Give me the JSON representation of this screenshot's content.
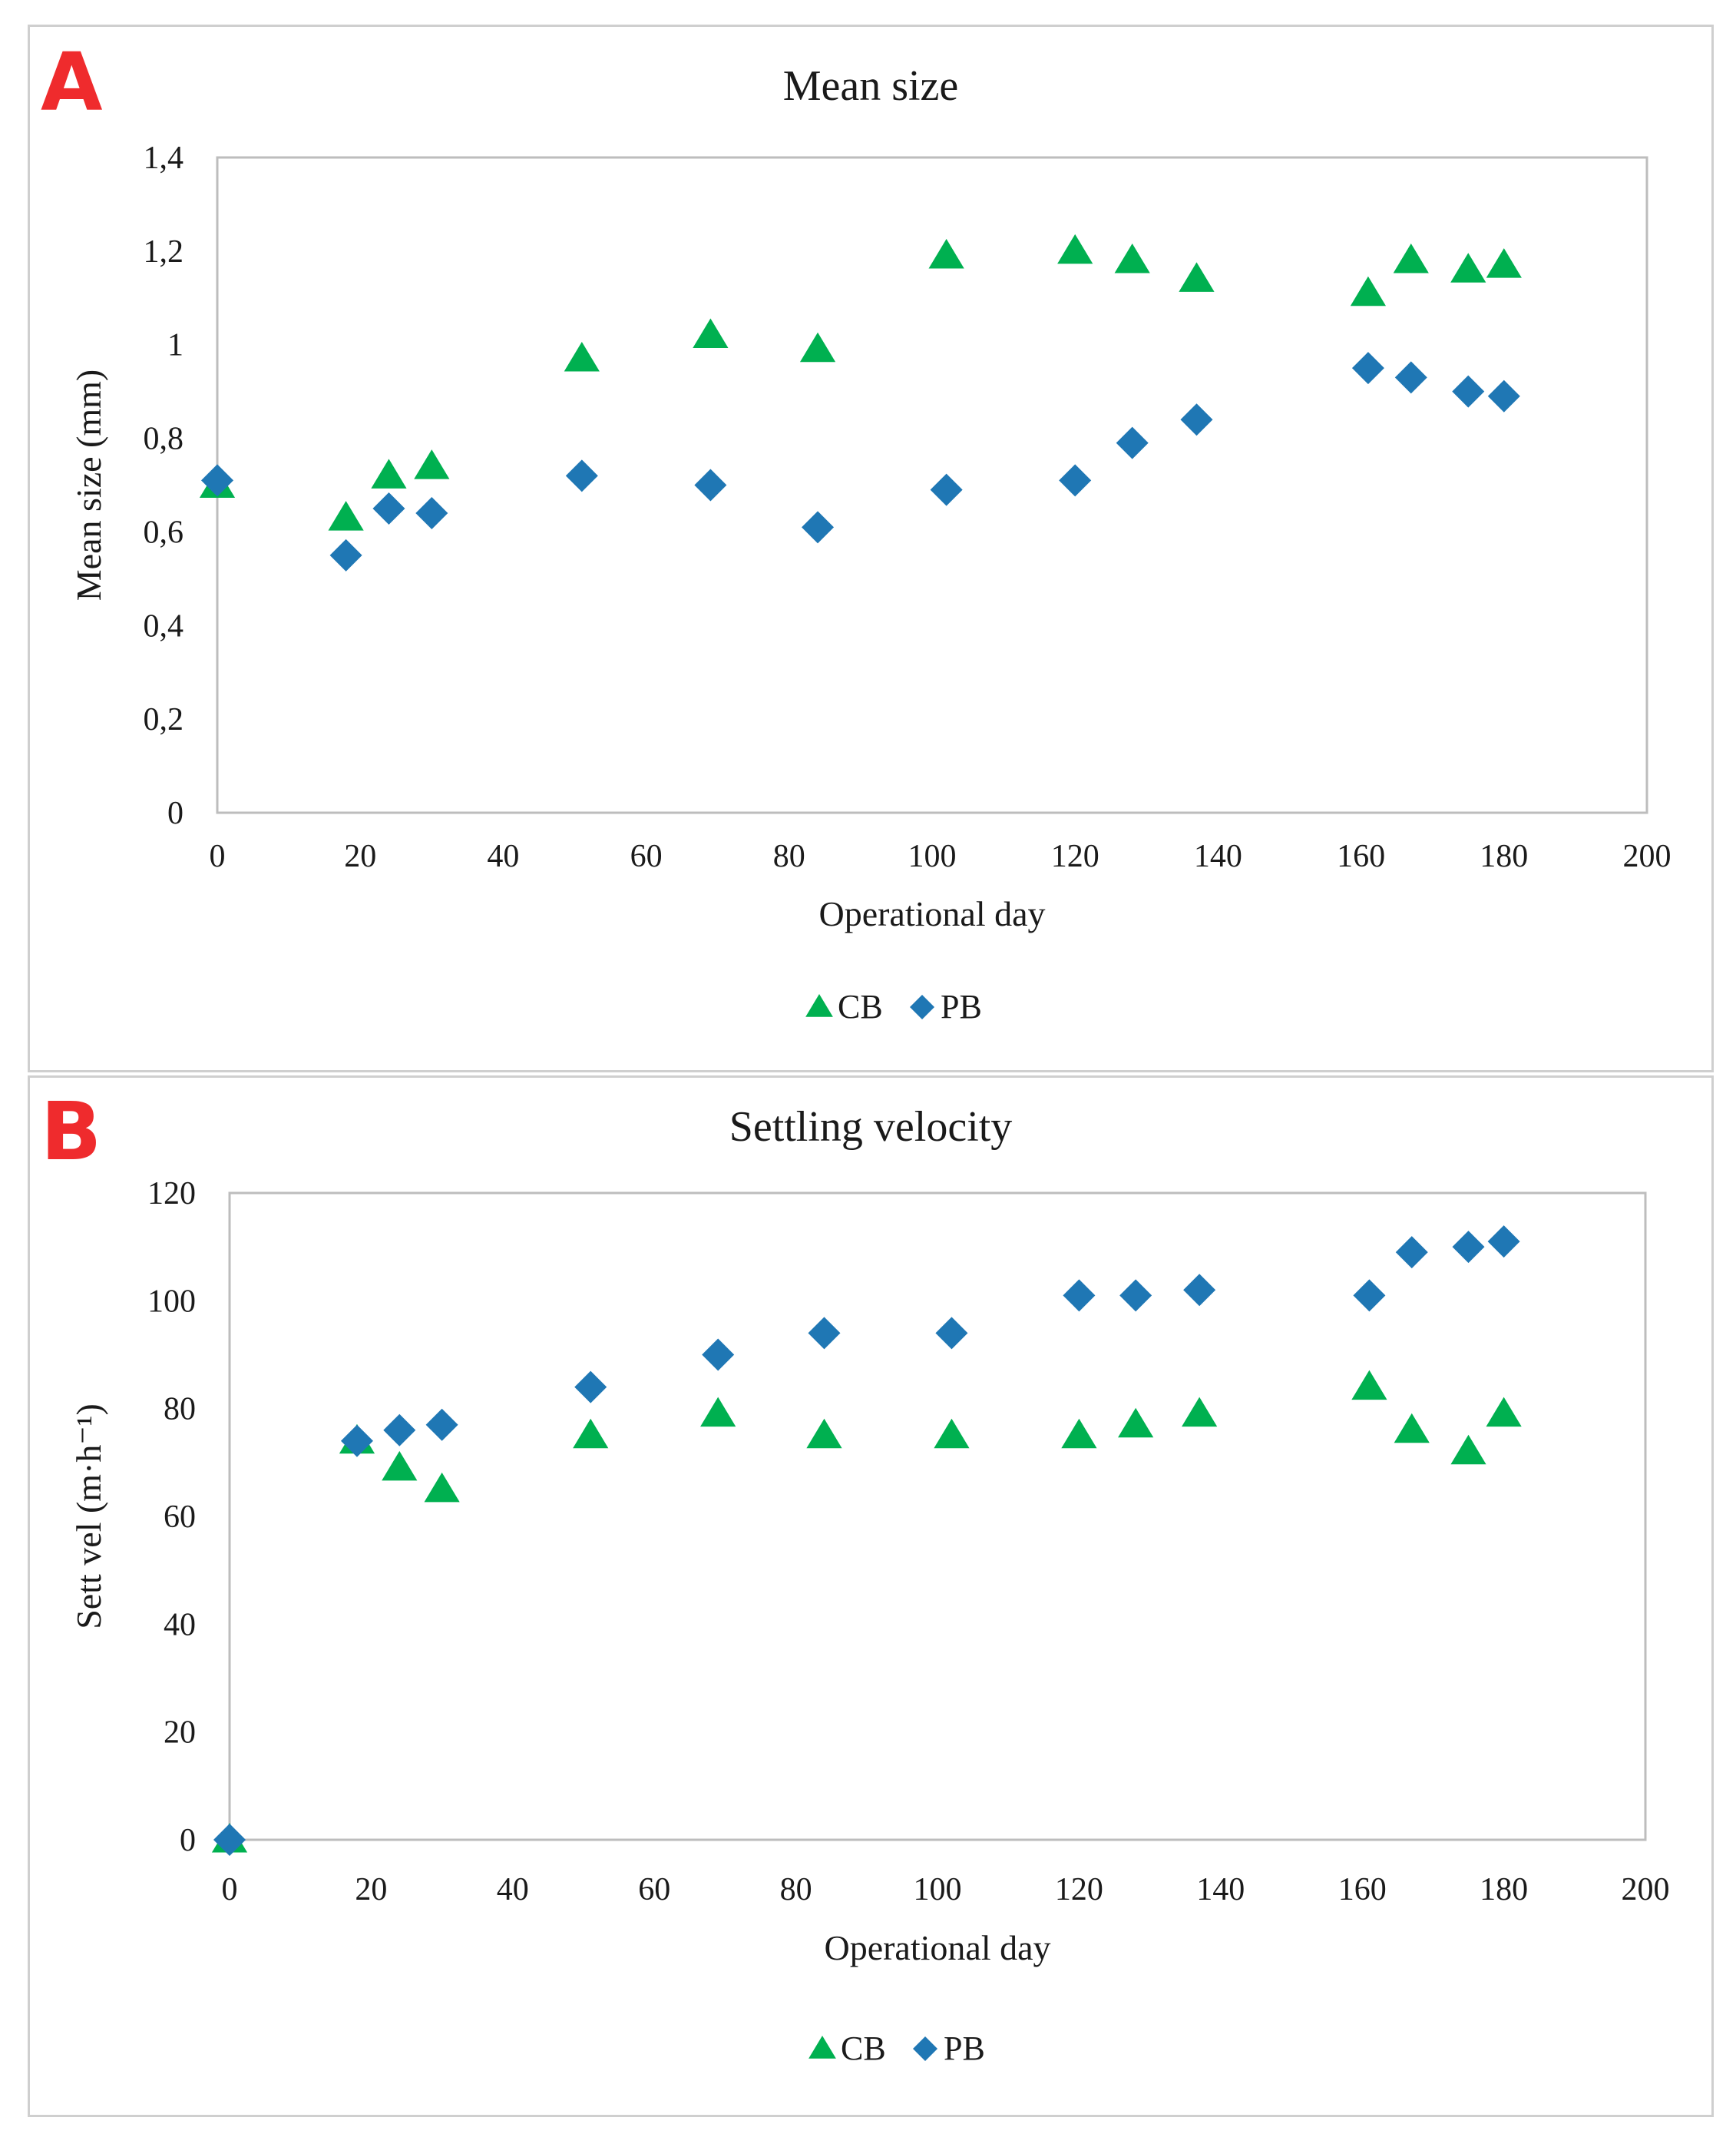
{
  "colors": {
    "cb": "#00b050",
    "pb": "#1f77b4",
    "badge": "#ef2b2d"
  },
  "chart_data": [
    {
      "type": "scatter",
      "panel": "A",
      "title": "Mean size",
      "xlabel": "Operational day",
      "ylabel": "Mean size (mm)",
      "xlim": [
        0,
        200
      ],
      "ylim": [
        0,
        1.4
      ],
      "xticks": [
        0,
        20,
        40,
        60,
        80,
        100,
        120,
        140,
        160,
        180,
        200
      ],
      "yticks": [
        0,
        0.2,
        0.4,
        0.6,
        0.8,
        1,
        1.2,
        1.4
      ],
      "yticklabels": [
        "0",
        "0,2",
        "0,4",
        "0,6",
        "0,8",
        "1",
        "1,2",
        "1,4"
      ],
      "legend": [
        "CB",
        "PB"
      ],
      "series": [
        {
          "name": "CB",
          "marker": "triangle",
          "x": [
            0,
            18,
            24,
            30,
            51,
            69,
            84,
            102,
            120,
            128,
            137,
            161,
            167,
            175,
            180
          ],
          "y": [
            0.7,
            0.63,
            0.72,
            0.74,
            0.97,
            1.02,
            0.99,
            1.19,
            1.2,
            1.18,
            1.14,
            1.11,
            1.18,
            1.16,
            1.17
          ]
        },
        {
          "name": "PB",
          "marker": "diamond",
          "x": [
            0,
            18,
            24,
            30,
            51,
            69,
            84,
            102,
            120,
            128,
            137,
            161,
            167,
            175,
            180
          ],
          "y": [
            0.71,
            0.55,
            0.65,
            0.64,
            0.72,
            0.7,
            0.61,
            0.69,
            0.71,
            0.79,
            0.84,
            0.95,
            0.93,
            0.9,
            0.89
          ]
        }
      ]
    },
    {
      "type": "scatter",
      "panel": "B",
      "title": "Settling velocity",
      "xlabel": "Operational day",
      "ylabel": "Sett vel (m·h⁻¹)",
      "xlim": [
        0,
        200
      ],
      "ylim": [
        0,
        120
      ],
      "xticks": [
        0,
        20,
        40,
        60,
        80,
        100,
        120,
        140,
        160,
        180,
        200
      ],
      "yticks": [
        0,
        20,
        40,
        60,
        80,
        100,
        120
      ],
      "yticklabels": [
        "0",
        "20",
        "40",
        "60",
        "80",
        "100",
        "120"
      ],
      "legend": [
        "CB",
        "PB"
      ],
      "series": [
        {
          "name": "CB",
          "marker": "triangle",
          "x": [
            0,
            18,
            24,
            30,
            51,
            69,
            84,
            102,
            120,
            128,
            137,
            161,
            167,
            175,
            180
          ],
          "y": [
            0,
            74,
            69,
            65,
            75,
            79,
            75,
            75,
            75,
            77,
            79,
            84,
            76,
            72,
            79
          ]
        },
        {
          "name": "PB",
          "marker": "diamond",
          "x": [
            0,
            18,
            24,
            30,
            51,
            69,
            84,
            102,
            120,
            128,
            137,
            161,
            167,
            175,
            180
          ],
          "y": [
            0,
            74,
            76,
            77,
            84,
            90,
            94,
            94,
            101,
            101,
            102,
            101,
            109,
            110,
            111
          ]
        }
      ]
    }
  ]
}
